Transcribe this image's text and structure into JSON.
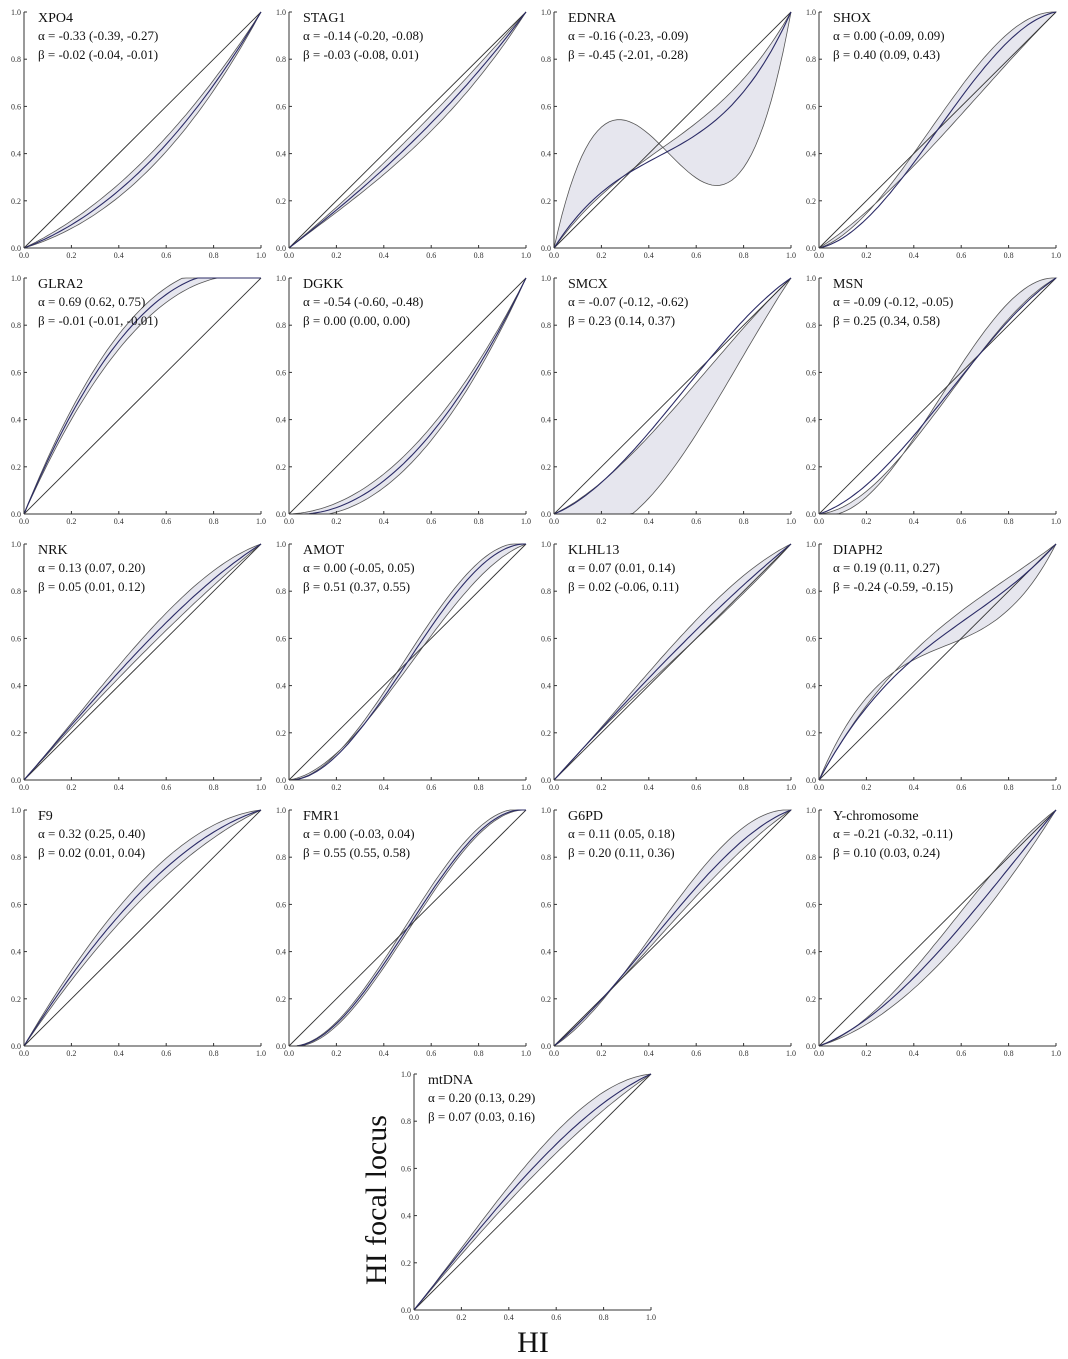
{
  "figure": {
    "x_axis_label": "HI",
    "y_axis_label": "HI focal locus",
    "tick_labels": [
      "0.0",
      "0.2",
      "0.4",
      "0.6",
      "0.8",
      "1.0"
    ]
  },
  "colors": {
    "band_fill": "#e6e6ee",
    "band_stroke": "#555555",
    "mean_curve": "#2b2b66",
    "neutral_diagonal": "#333333"
  },
  "chart_data": [
    {
      "type": "line",
      "title": "XPO4",
      "alpha_text": "α = -0.33 (-0.39, -0.27)",
      "beta_text": "β = -0.02 (-0.04, -0.01)",
      "alpha": -0.33,
      "alpha_ci": [
        -0.39,
        -0.27
      ],
      "beta": -0.02,
      "beta_ci": [
        -0.04,
        -0.01
      ],
      "xlim": [
        0,
        1
      ],
      "ylim": [
        0,
        1
      ]
    },
    {
      "type": "line",
      "title": "STAG1",
      "alpha_text": "α = -0.14 (-0.20, -0.08)",
      "beta_text": "β = -0.03 (-0.08, 0.01)",
      "alpha": -0.14,
      "alpha_ci": [
        -0.2,
        -0.08
      ],
      "beta": -0.03,
      "beta_ci": [
        -0.08,
        0.01
      ],
      "xlim": [
        0,
        1
      ],
      "ylim": [
        0,
        1
      ]
    },
    {
      "type": "line",
      "title": "EDNRA",
      "alpha_text": "α = -0.16 (-0.23, -0.09)",
      "beta_text": "β = -0.45 (-2.01, -0.28)",
      "alpha": -0.16,
      "alpha_ci": [
        -0.23,
        -0.09
      ],
      "beta": -0.45,
      "beta_ci": [
        -2.01,
        -0.28
      ],
      "xlim": [
        0,
        1
      ],
      "ylim": [
        0,
        1
      ]
    },
    {
      "type": "line",
      "title": "SHOX",
      "alpha_text": "α = 0.00 (-0.09, 0.09)",
      "beta_text": "β = 0.40 (0.09, 0.43)",
      "alpha": 0.0,
      "alpha_ci": [
        -0.09,
        0.09
      ],
      "beta": 0.4,
      "beta_ci": [
        0.09,
        0.43
      ],
      "xlim": [
        0,
        1
      ],
      "ylim": [
        0,
        1
      ]
    },
    {
      "type": "line",
      "title": "GLRA2",
      "alpha_text": "α = 0.69 (0.62, 0.75)",
      "beta_text": "β = -0.01 (-0.01, -0.01)",
      "alpha": 0.69,
      "alpha_ci": [
        0.62,
        0.75
      ],
      "beta": -0.01,
      "beta_ci": [
        -0.01,
        -0.01
      ],
      "xlim": [
        0,
        1
      ],
      "ylim": [
        0,
        1
      ]
    },
    {
      "type": "line",
      "title": "DGKK",
      "alpha_text": "α = -0.54 (-0.60, -0.48)",
      "beta_text": "β = 0.00 (0.00, 0.00)",
      "alpha": -0.54,
      "alpha_ci": [
        -0.6,
        -0.48
      ],
      "beta": 0.0,
      "beta_ci": [
        0.0,
        0.0
      ],
      "xlim": [
        0,
        1
      ],
      "ylim": [
        0,
        1
      ]
    },
    {
      "type": "line",
      "title": "SMCX",
      "alpha_text": "α = -0.07 (-0.12, -0.62)",
      "beta_text": "β = 0.23 (0.14, 0.37)",
      "alpha": -0.07,
      "alpha_ci": [
        -0.12,
        -0.62
      ],
      "beta": 0.23,
      "beta_ci": [
        0.14,
        0.37
      ],
      "xlim": [
        0,
        1
      ],
      "ylim": [
        0,
        1
      ]
    },
    {
      "type": "line",
      "title": "MSN",
      "alpha_text": "α = -0.09 (-0.12, -0.05)",
      "beta_text": "β = 0.25 (0.34, 0.58)",
      "alpha": -0.09,
      "alpha_ci": [
        -0.12,
        -0.05
      ],
      "beta": 0.25,
      "beta_ci": [
        0.34,
        0.58
      ],
      "xlim": [
        0,
        1
      ],
      "ylim": [
        0,
        1
      ]
    },
    {
      "type": "line",
      "title": "NRK",
      "alpha_text": "α = 0.13 (0.07, 0.20)",
      "beta_text": "β = 0.05 (0.01, 0.12)",
      "alpha": 0.13,
      "alpha_ci": [
        0.07,
        0.2
      ],
      "beta": 0.05,
      "beta_ci": [
        0.01,
        0.12
      ],
      "xlim": [
        0,
        1
      ],
      "ylim": [
        0,
        1
      ]
    },
    {
      "type": "line",
      "title": "AMOT",
      "alpha_text": "α = 0.00 (-0.05, 0.05)",
      "beta_text": "β = 0.51 (0.37, 0.55)",
      "alpha": 0.0,
      "alpha_ci": [
        -0.05,
        0.05
      ],
      "beta": 0.51,
      "beta_ci": [
        0.37,
        0.55
      ],
      "xlim": [
        0,
        1
      ],
      "ylim": [
        0,
        1
      ]
    },
    {
      "type": "line",
      "title": "KLHL13",
      "alpha_text": "α = 0.07 (0.01, 0.14)",
      "beta_text": "β = 0.02 (-0.06, 0.11)",
      "alpha": 0.07,
      "alpha_ci": [
        0.01,
        0.14
      ],
      "beta": 0.02,
      "beta_ci": [
        -0.06,
        0.11
      ],
      "xlim": [
        0,
        1
      ],
      "ylim": [
        0,
        1
      ]
    },
    {
      "type": "line",
      "title": "DIAPH2",
      "alpha_text": "α = 0.19 (0.11, 0.27)",
      "beta_text": "β = -0.24 (-0.59, -0.15)",
      "alpha": 0.19,
      "alpha_ci": [
        0.11,
        0.27
      ],
      "beta": -0.24,
      "beta_ci": [
        -0.59,
        -0.15
      ],
      "xlim": [
        0,
        1
      ],
      "ylim": [
        0,
        1
      ]
    },
    {
      "type": "line",
      "title": "F9",
      "alpha_text": "α = 0.32 (0.25, 0.40)",
      "beta_text": "β = 0.02 (0.01, 0.04)",
      "alpha": 0.32,
      "alpha_ci": [
        0.25,
        0.4
      ],
      "beta": 0.02,
      "beta_ci": [
        0.01,
        0.04
      ],
      "xlim": [
        0,
        1
      ],
      "ylim": [
        0,
        1
      ]
    },
    {
      "type": "line",
      "title": "FMR1",
      "alpha_text": "α = 0.00 (-0.03, 0.04)",
      "beta_text": "β = 0.55 (0.55, 0.58)",
      "alpha": 0.0,
      "alpha_ci": [
        -0.03,
        0.04
      ],
      "beta": 0.55,
      "beta_ci": [
        0.55,
        0.58
      ],
      "xlim": [
        0,
        1
      ],
      "ylim": [
        0,
        1
      ]
    },
    {
      "type": "line",
      "title": "G6PD",
      "alpha_text": "α = 0.11 (0.05, 0.18)",
      "beta_text": "β = 0.20 (0.11, 0.36)",
      "alpha": 0.11,
      "alpha_ci": [
        0.05,
        0.18
      ],
      "beta": 0.2,
      "beta_ci": [
        0.11,
        0.36
      ],
      "xlim": [
        0,
        1
      ],
      "ylim": [
        0,
        1
      ]
    },
    {
      "type": "line",
      "title": "Y-chromosome",
      "alpha_text": "α = -0.21 (-0.32, -0.11)",
      "beta_text": "β = 0.10 (0.03, 0.24)",
      "alpha": -0.21,
      "alpha_ci": [
        -0.32,
        -0.11
      ],
      "beta": 0.1,
      "beta_ci": [
        0.03,
        0.24
      ],
      "xlim": [
        0,
        1
      ],
      "ylim": [
        0,
        1
      ]
    },
    {
      "type": "line",
      "title": "mtDNA",
      "alpha_text": "α = 0.20 (0.13, 0.29)",
      "beta_text": "β = 0.07 (0.03, 0.16)",
      "alpha": 0.2,
      "alpha_ci": [
        0.13,
        0.29
      ],
      "beta": 0.07,
      "beta_ci": [
        0.03,
        0.16
      ],
      "xlim": [
        0,
        1
      ],
      "ylim": [
        0,
        1
      ]
    }
  ]
}
